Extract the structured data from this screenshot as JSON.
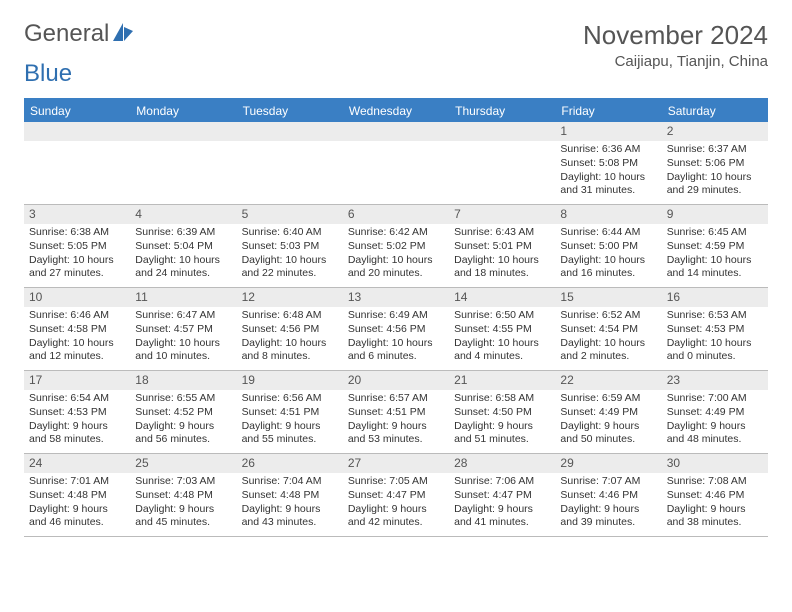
{
  "logo": {
    "word1": "General",
    "word2": "Blue"
  },
  "title": "November 2024",
  "location": "Caijiapu, Tianjin, China",
  "colors": {
    "header_bar": "#3a7fc4",
    "daynum_bg": "#ececec",
    "text": "#333333",
    "border": "#bbbbbb"
  },
  "dow": [
    "Sunday",
    "Monday",
    "Tuesday",
    "Wednesday",
    "Thursday",
    "Friday",
    "Saturday"
  ],
  "weeks": [
    [
      {
        "num": "",
        "sr": "",
        "ss": "",
        "dl": ""
      },
      {
        "num": "",
        "sr": "",
        "ss": "",
        "dl": ""
      },
      {
        "num": "",
        "sr": "",
        "ss": "",
        "dl": ""
      },
      {
        "num": "",
        "sr": "",
        "ss": "",
        "dl": ""
      },
      {
        "num": "",
        "sr": "",
        "ss": "",
        "dl": ""
      },
      {
        "num": "1",
        "sr": "Sunrise: 6:36 AM",
        "ss": "Sunset: 5:08 PM",
        "dl": "Daylight: 10 hours and 31 minutes."
      },
      {
        "num": "2",
        "sr": "Sunrise: 6:37 AM",
        "ss": "Sunset: 5:06 PM",
        "dl": "Daylight: 10 hours and 29 minutes."
      }
    ],
    [
      {
        "num": "3",
        "sr": "Sunrise: 6:38 AM",
        "ss": "Sunset: 5:05 PM",
        "dl": "Daylight: 10 hours and 27 minutes."
      },
      {
        "num": "4",
        "sr": "Sunrise: 6:39 AM",
        "ss": "Sunset: 5:04 PM",
        "dl": "Daylight: 10 hours and 24 minutes."
      },
      {
        "num": "5",
        "sr": "Sunrise: 6:40 AM",
        "ss": "Sunset: 5:03 PM",
        "dl": "Daylight: 10 hours and 22 minutes."
      },
      {
        "num": "6",
        "sr": "Sunrise: 6:42 AM",
        "ss": "Sunset: 5:02 PM",
        "dl": "Daylight: 10 hours and 20 minutes."
      },
      {
        "num": "7",
        "sr": "Sunrise: 6:43 AM",
        "ss": "Sunset: 5:01 PM",
        "dl": "Daylight: 10 hours and 18 minutes."
      },
      {
        "num": "8",
        "sr": "Sunrise: 6:44 AM",
        "ss": "Sunset: 5:00 PM",
        "dl": "Daylight: 10 hours and 16 minutes."
      },
      {
        "num": "9",
        "sr": "Sunrise: 6:45 AM",
        "ss": "Sunset: 4:59 PM",
        "dl": "Daylight: 10 hours and 14 minutes."
      }
    ],
    [
      {
        "num": "10",
        "sr": "Sunrise: 6:46 AM",
        "ss": "Sunset: 4:58 PM",
        "dl": "Daylight: 10 hours and 12 minutes."
      },
      {
        "num": "11",
        "sr": "Sunrise: 6:47 AM",
        "ss": "Sunset: 4:57 PM",
        "dl": "Daylight: 10 hours and 10 minutes."
      },
      {
        "num": "12",
        "sr": "Sunrise: 6:48 AM",
        "ss": "Sunset: 4:56 PM",
        "dl": "Daylight: 10 hours and 8 minutes."
      },
      {
        "num": "13",
        "sr": "Sunrise: 6:49 AM",
        "ss": "Sunset: 4:56 PM",
        "dl": "Daylight: 10 hours and 6 minutes."
      },
      {
        "num": "14",
        "sr": "Sunrise: 6:50 AM",
        "ss": "Sunset: 4:55 PM",
        "dl": "Daylight: 10 hours and 4 minutes."
      },
      {
        "num": "15",
        "sr": "Sunrise: 6:52 AM",
        "ss": "Sunset: 4:54 PM",
        "dl": "Daylight: 10 hours and 2 minutes."
      },
      {
        "num": "16",
        "sr": "Sunrise: 6:53 AM",
        "ss": "Sunset: 4:53 PM",
        "dl": "Daylight: 10 hours and 0 minutes."
      }
    ],
    [
      {
        "num": "17",
        "sr": "Sunrise: 6:54 AM",
        "ss": "Sunset: 4:53 PM",
        "dl": "Daylight: 9 hours and 58 minutes."
      },
      {
        "num": "18",
        "sr": "Sunrise: 6:55 AM",
        "ss": "Sunset: 4:52 PM",
        "dl": "Daylight: 9 hours and 56 minutes."
      },
      {
        "num": "19",
        "sr": "Sunrise: 6:56 AM",
        "ss": "Sunset: 4:51 PM",
        "dl": "Daylight: 9 hours and 55 minutes."
      },
      {
        "num": "20",
        "sr": "Sunrise: 6:57 AM",
        "ss": "Sunset: 4:51 PM",
        "dl": "Daylight: 9 hours and 53 minutes."
      },
      {
        "num": "21",
        "sr": "Sunrise: 6:58 AM",
        "ss": "Sunset: 4:50 PM",
        "dl": "Daylight: 9 hours and 51 minutes."
      },
      {
        "num": "22",
        "sr": "Sunrise: 6:59 AM",
        "ss": "Sunset: 4:49 PM",
        "dl": "Daylight: 9 hours and 50 minutes."
      },
      {
        "num": "23",
        "sr": "Sunrise: 7:00 AM",
        "ss": "Sunset: 4:49 PM",
        "dl": "Daylight: 9 hours and 48 minutes."
      }
    ],
    [
      {
        "num": "24",
        "sr": "Sunrise: 7:01 AM",
        "ss": "Sunset: 4:48 PM",
        "dl": "Daylight: 9 hours and 46 minutes."
      },
      {
        "num": "25",
        "sr": "Sunrise: 7:03 AM",
        "ss": "Sunset: 4:48 PM",
        "dl": "Daylight: 9 hours and 45 minutes."
      },
      {
        "num": "26",
        "sr": "Sunrise: 7:04 AM",
        "ss": "Sunset: 4:48 PM",
        "dl": "Daylight: 9 hours and 43 minutes."
      },
      {
        "num": "27",
        "sr": "Sunrise: 7:05 AM",
        "ss": "Sunset: 4:47 PM",
        "dl": "Daylight: 9 hours and 42 minutes."
      },
      {
        "num": "28",
        "sr": "Sunrise: 7:06 AM",
        "ss": "Sunset: 4:47 PM",
        "dl": "Daylight: 9 hours and 41 minutes."
      },
      {
        "num": "29",
        "sr": "Sunrise: 7:07 AM",
        "ss": "Sunset: 4:46 PM",
        "dl": "Daylight: 9 hours and 39 minutes."
      },
      {
        "num": "30",
        "sr": "Sunrise: 7:08 AM",
        "ss": "Sunset: 4:46 PM",
        "dl": "Daylight: 9 hours and 38 minutes."
      }
    ]
  ]
}
